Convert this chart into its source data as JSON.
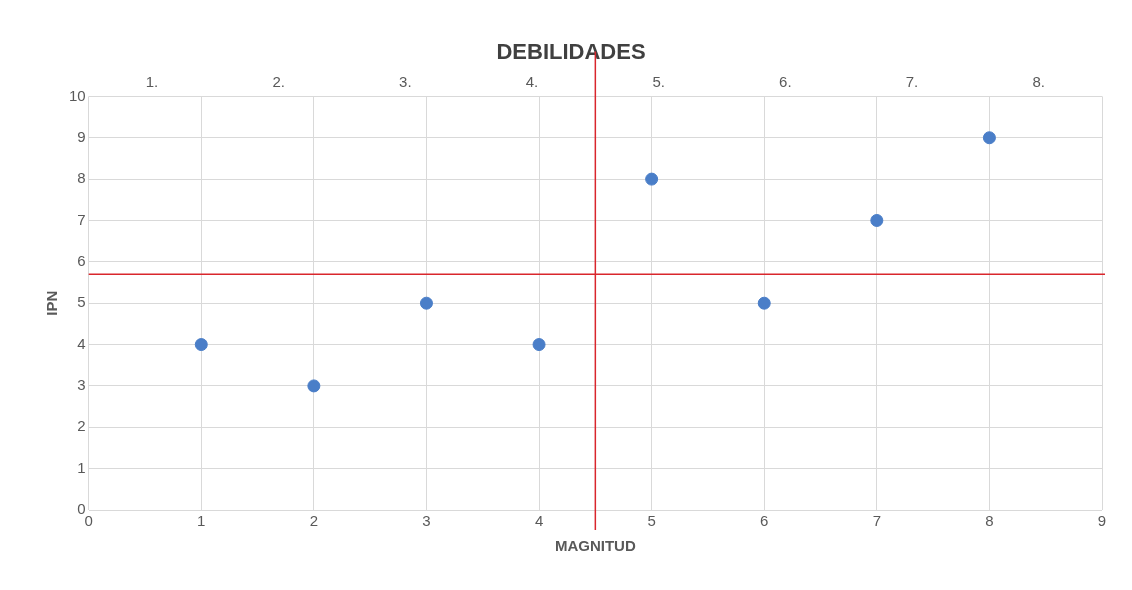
{
  "chart_data": {
    "type": "scatter",
    "title": "DEBILIDADES",
    "xlabel": "MAGNITUD",
    "ylabel": "IPN",
    "x": [
      1,
      2,
      3,
      4,
      5,
      6,
      7,
      8
    ],
    "values": [
      4,
      3,
      5,
      4,
      8,
      5,
      7,
      9
    ],
    "color": "#4a7ec8",
    "marker": "circle",
    "xlim": [
      0,
      9
    ],
    "xticks": [
      0,
      1,
      2,
      3,
      4,
      5,
      6,
      7,
      8,
      9
    ],
    "ylim": [
      0,
      10
    ],
    "yticks": [
      0,
      1,
      2,
      3,
      4,
      5,
      6,
      7,
      8,
      9,
      10
    ],
    "grid": true,
    "legend": false,
    "ref_lines": [
      {
        "axis": "x",
        "value": 4.5,
        "color": "#d9262c"
      },
      {
        "axis": "y",
        "value": 5.7,
        "color": "#d9262c"
      }
    ],
    "annotations": [
      "1.",
      "2.",
      "3.",
      "4.",
      "5.",
      "6.",
      "7.",
      "8."
    ]
  }
}
